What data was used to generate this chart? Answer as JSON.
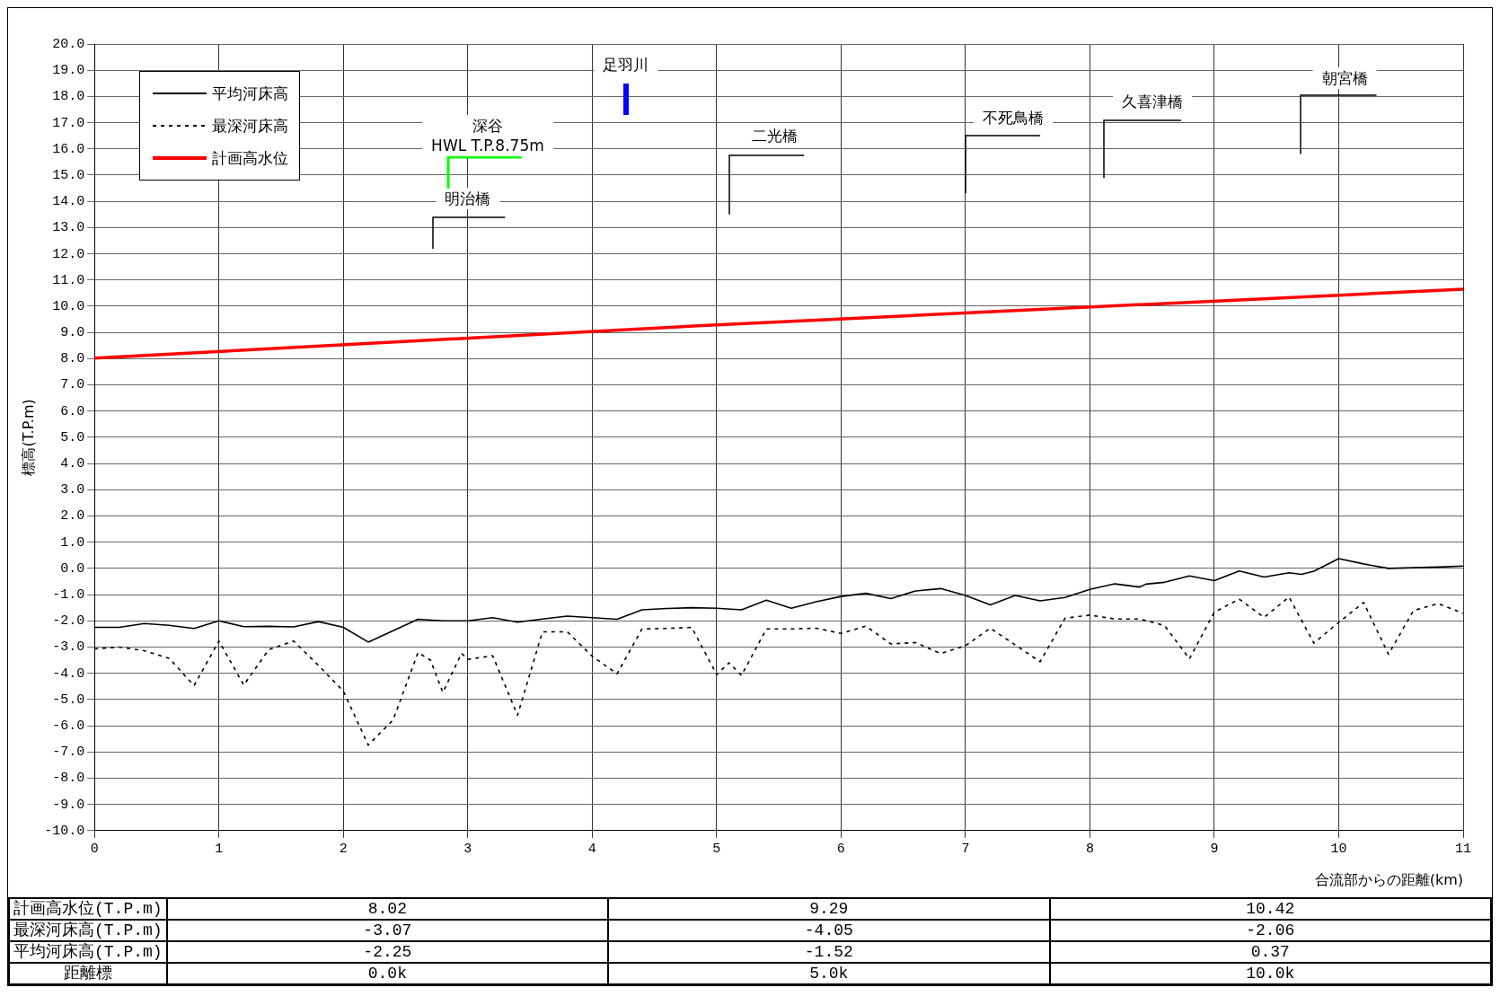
{
  "chart_data": {
    "type": "line",
    "xlabel": "合流部からの距離(km)",
    "ylabel": "標高(T.P.m)",
    "xlim": [
      0,
      11
    ],
    "xticks": [
      0,
      1,
      2,
      3,
      4,
      5,
      6,
      7,
      8,
      9,
      10,
      11
    ],
    "ylim": [
      -10,
      20
    ],
    "yticks": [
      {
        "value": -10,
        "label": "-10.0"
      },
      {
        "value": -9,
        "label": "-9.0"
      },
      {
        "value": -8,
        "label": "-8.0"
      },
      {
        "value": -7,
        "label": "-7.0"
      },
      {
        "value": -6,
        "label": "-6.0"
      },
      {
        "value": -5,
        "label": "-5.0"
      },
      {
        "value": -4,
        "label": "-4.0"
      },
      {
        "value": -3,
        "label": "-3.0"
      },
      {
        "value": -2,
        "label": "-2.0"
      },
      {
        "value": -1,
        "label": "-1.0"
      },
      {
        "value": 0,
        "label": "0.0"
      },
      {
        "value": 1,
        "label": "1.0"
      },
      {
        "value": 2,
        "label": "2.0"
      },
      {
        "value": 3,
        "label": "3.0"
      },
      {
        "value": 4,
        "label": "4.0"
      },
      {
        "value": 5,
        "label": "5.0"
      },
      {
        "value": 6,
        "label": "6.0"
      },
      {
        "value": 7,
        "label": "7.0"
      },
      {
        "value": 8,
        "label": "8.0"
      },
      {
        "value": 9,
        "label": "9.0"
      },
      {
        "value": 10,
        "label": "10.0"
      },
      {
        "value": 11,
        "label": "11.0"
      },
      {
        "value": 12,
        "label": "12.0"
      },
      {
        "value": 13,
        "label": "13.0"
      },
      {
        "value": 14,
        "label": "14.0"
      },
      {
        "value": 15,
        "label": "15.0"
      },
      {
        "value": 16,
        "label": "16.0"
      },
      {
        "value": 17,
        "label": "17.0"
      },
      {
        "value": 18,
        "label": "18.0"
      },
      {
        "value": 19,
        "label": "19.0"
      },
      {
        "value": 20,
        "label": "20.0"
      }
    ],
    "grid": true,
    "legend": "top left",
    "marker": "none",
    "series": [
      {
        "name": "平均河床高",
        "color": "#000000",
        "line_style": "solid",
        "x": [
          0,
          0.2,
          0.4,
          0.6,
          0.8,
          1.0,
          1.2,
          1.4,
          1.6,
          1.8,
          2.0,
          2.2,
          2.6,
          2.8,
          3.0,
          3.2,
          3.4,
          3.6,
          3.8,
          4.0,
          4.2,
          4.4,
          4.6,
          4.8,
          5.0,
          5.2,
          5.4,
          5.6,
          5.8,
          6.0,
          6.2,
          6.4,
          6.6,
          6.8,
          7.0,
          7.2,
          7.4,
          7.6,
          7.8,
          8.0,
          8.2,
          8.4,
          8.45,
          8.6,
          8.8,
          9.0,
          9.2,
          9.4,
          9.6,
          9.7,
          9.8,
          10.0,
          10.2,
          10.4,
          10.8,
          11.0
        ],
        "values": [
          -2.25,
          -2.25,
          -2.1,
          -2.17,
          -2.29,
          -2.0,
          -2.22,
          -2.21,
          -2.23,
          -2.03,
          -2.25,
          -2.81,
          -1.94,
          -2.0,
          -2.0,
          -1.88,
          -2.05,
          -1.93,
          -1.82,
          -1.88,
          -1.94,
          -1.58,
          -1.53,
          -1.5,
          -1.52,
          -1.58,
          -1.21,
          -1.52,
          -1.27,
          -1.07,
          -0.95,
          -1.15,
          -0.86,
          -0.77,
          -1.03,
          -1.39,
          -1.03,
          -1.24,
          -1.11,
          -0.8,
          -0.59,
          -0.71,
          -0.6,
          -0.53,
          -0.29,
          -0.47,
          -0.1,
          -0.33,
          -0.17,
          -0.23,
          -0.11,
          0.37,
          0.17,
          0.0,
          0.05,
          0.09
        ]
      },
      {
        "name": "最深河床高",
        "color": "#000000",
        "line_style": "dotted",
        "x": [
          0,
          0.2,
          0.4,
          0.6,
          0.8,
          1.0,
          1.2,
          1.4,
          1.6,
          1.8,
          2.0,
          2.2,
          2.4,
          2.6,
          2.7,
          2.8,
          2.95,
          3.0,
          3.2,
          3.4,
          3.6,
          3.8,
          4.0,
          4.2,
          4.4,
          4.6,
          4.8,
          5.0,
          5.1,
          5.2,
          5.4,
          5.6,
          5.8,
          6.0,
          6.2,
          6.4,
          6.6,
          6.8,
          7.0,
          7.2,
          7.4,
          7.6,
          7.8,
          8.0,
          8.2,
          8.4,
          8.6,
          8.8,
          9.0,
          9.2,
          9.4,
          9.6,
          9.8,
          10.0,
          10.2,
          10.4,
          10.6,
          10.8,
          11.0
        ],
        "values": [
          -3.07,
          -3.0,
          -3.14,
          -3.43,
          -4.47,
          -2.77,
          -4.45,
          -3.1,
          -2.77,
          -3.7,
          -4.68,
          -6.74,
          -5.78,
          -3.21,
          -3.5,
          -4.73,
          -3.24,
          -3.47,
          -3.33,
          -5.6,
          -2.42,
          -2.42,
          -3.35,
          -4.02,
          -2.31,
          -2.29,
          -2.25,
          -4.05,
          -3.6,
          -4.08,
          -2.31,
          -2.31,
          -2.28,
          -2.48,
          -2.2,
          -2.88,
          -2.83,
          -3.25,
          -2.95,
          -2.28,
          -2.92,
          -3.56,
          -1.9,
          -1.78,
          -1.93,
          -1.93,
          -2.18,
          -3.45,
          -1.67,
          -1.17,
          -1.87,
          -1.09,
          -2.85,
          -2.06,
          -1.3,
          -3.28,
          -1.61,
          -1.34,
          -1.72
        ]
      },
      {
        "name": "計画高水位",
        "color": "#ff0000",
        "line_style": "solid",
        "x": [
          0,
          5,
          10,
          11
        ],
        "values": [
          8.02,
          9.29,
          10.42,
          10.65
        ]
      }
    ],
    "annotations": [
      "明治橋",
      "深谷\nHWL T.P.8.75m",
      "足羽川",
      "二光橋",
      "不死鳥橋",
      "久喜津橋",
      "朝宮橋",
      "計画高水位(T.P.m)",
      "8.02",
      "9.29",
      "10.42",
      "最深河床高(T.P.m)",
      "-3.07",
      "-4.05",
      "-2.06",
      "平均河床高(T.P.m)",
      "-2.25",
      "-1.52",
      "0.37",
      "距離標",
      "0.0k",
      "5.0k",
      "10.0k"
    ]
  }
}
